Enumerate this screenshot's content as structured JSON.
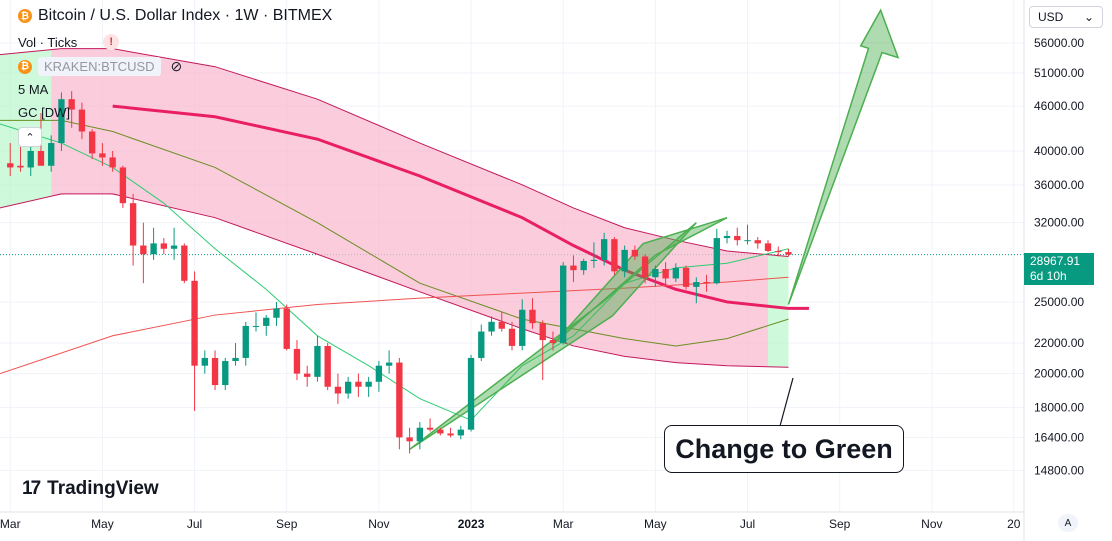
{
  "header": {
    "title": "Bitcoin / U.S. Dollar Index · 1W · BITMEX",
    "vol_label": "Vol · Ticks",
    "compare_symbol": "KRAKEN:BTCUSD",
    "ma_label": "5 MA",
    "gc_label": "GC [DW]",
    "coin_glyph": "₿"
  },
  "toolbar": {
    "currency": "USD",
    "auto_label": "A"
  },
  "branding": {
    "name": "TradingView"
  },
  "annotation": {
    "callout_text": "Change to Green"
  },
  "price_label": {
    "price": "28967.91",
    "countdown": "6d 10h"
  },
  "colors": {
    "up": "#089981",
    "down": "#f23645",
    "band_red": "#f8bbd0",
    "band_green": "#b9f6ca",
    "ma_red": "#e91e63",
    "arrow_green": "#4caf50"
  },
  "chart_data": {
    "type": "candlestick",
    "title": "Bitcoin / U.S. Dollar Index · 1W · BITMEX",
    "y_scale": "log",
    "ylim": [
      13000,
      64000
    ],
    "y_ticks": [
      56000,
      51000,
      46000,
      40000,
      36000,
      32000,
      25000,
      22000,
      20000,
      18000,
      16400,
      14800
    ],
    "x_labels": [
      "Mar",
      "May",
      "Jul",
      "Sep",
      "Nov",
      "2023",
      "Mar",
      "May",
      "Jul",
      "Sep",
      "Nov",
      "20"
    ],
    "x_label_weeks": [
      0,
      9,
      18,
      27,
      36,
      45,
      54,
      63,
      72,
      81,
      90,
      98
    ],
    "x_range_weeks": [
      -1,
      99
    ],
    "current_price": 28967.91,
    "candles": [
      {
        "o": 38500,
        "h": 41000,
        "l": 37000,
        "c": 38000
      },
      {
        "o": 38200,
        "h": 40500,
        "l": 37500,
        "c": 38000
      },
      {
        "o": 38000,
        "h": 41500,
        "l": 37000,
        "c": 40000
      },
      {
        "o": 40000,
        "h": 45000,
        "l": 38500,
        "c": 38200
      },
      {
        "o": 38200,
        "h": 42000,
        "l": 37500,
        "c": 41000
      },
      {
        "o": 41000,
        "h": 48000,
        "l": 40000,
        "c": 47000
      },
      {
        "o": 47000,
        "h": 48200,
        "l": 43000,
        "c": 45500
      },
      {
        "o": 45500,
        "h": 46500,
        "l": 41500,
        "c": 42500
      },
      {
        "o": 42500,
        "h": 42800,
        "l": 39000,
        "c": 39700
      },
      {
        "o": 39700,
        "h": 41000,
        "l": 38200,
        "c": 39200
      },
      {
        "o": 39200,
        "h": 40000,
        "l": 37500,
        "c": 38000
      },
      {
        "o": 38000,
        "h": 38200,
        "l": 33500,
        "c": 34000
      },
      {
        "o": 34000,
        "h": 35000,
        "l": 28000,
        "c": 29800
      },
      {
        "o": 29800,
        "h": 32000,
        "l": 26500,
        "c": 29000
      },
      {
        "o": 29000,
        "h": 31500,
        "l": 28500,
        "c": 30000
      },
      {
        "o": 30000,
        "h": 30500,
        "l": 29000,
        "c": 29500
      },
      {
        "o": 29500,
        "h": 31500,
        "l": 28500,
        "c": 29800
      },
      {
        "o": 29800,
        "h": 30000,
        "l": 26500,
        "c": 26700
      },
      {
        "o": 26700,
        "h": 27500,
        "l": 17800,
        "c": 20500
      },
      {
        "o": 20500,
        "h": 21500,
        "l": 20000,
        "c": 21000
      },
      {
        "o": 21000,
        "h": 21500,
        "l": 19000,
        "c": 19300
      },
      {
        "o": 19300,
        "h": 21000,
        "l": 19000,
        "c": 20800
      },
      {
        "o": 20800,
        "h": 22000,
        "l": 20500,
        "c": 21000
      },
      {
        "o": 21000,
        "h": 23500,
        "l": 20500,
        "c": 23200
      },
      {
        "o": 23200,
        "h": 24200,
        "l": 22800,
        "c": 23200
      },
      {
        "o": 23200,
        "h": 24000,
        "l": 22500,
        "c": 23800
      },
      {
        "o": 23800,
        "h": 25000,
        "l": 23200,
        "c": 24500
      },
      {
        "o": 24500,
        "h": 24800,
        "l": 21500,
        "c": 21600
      },
      {
        "o": 21600,
        "h": 22200,
        "l": 19600,
        "c": 20000
      },
      {
        "o": 20000,
        "h": 20500,
        "l": 19200,
        "c": 19800
      },
      {
        "o": 19800,
        "h": 22500,
        "l": 19500,
        "c": 21800
      },
      {
        "o": 21800,
        "h": 22000,
        "l": 19000,
        "c": 19200
      },
      {
        "o": 19200,
        "h": 20000,
        "l": 18200,
        "c": 18800
      },
      {
        "o": 18800,
        "h": 19800,
        "l": 18500,
        "c": 19500
      },
      {
        "o": 19500,
        "h": 20000,
        "l": 18600,
        "c": 19200
      },
      {
        "o": 19200,
        "h": 19800,
        "l": 18600,
        "c": 19500
      },
      {
        "o": 19500,
        "h": 20800,
        "l": 18900,
        "c": 20500
      },
      {
        "o": 20500,
        "h": 21500,
        "l": 20000,
        "c": 20700
      },
      {
        "o": 20700,
        "h": 21000,
        "l": 15800,
        "c": 16400
      },
      {
        "o": 16400,
        "h": 16900,
        "l": 15600,
        "c": 16200
      },
      {
        "o": 16200,
        "h": 17200,
        "l": 15800,
        "c": 16900
      },
      {
        "o": 16900,
        "h": 17400,
        "l": 16700,
        "c": 16800
      },
      {
        "o": 16800,
        "h": 16900,
        "l": 16500,
        "c": 16600
      },
      {
        "o": 16600,
        "h": 16900,
        "l": 16400,
        "c": 16500
      },
      {
        "o": 16500,
        "h": 17000,
        "l": 16300,
        "c": 16800
      },
      {
        "o": 16800,
        "h": 21200,
        "l": 16700,
        "c": 21000
      },
      {
        "o": 21000,
        "h": 23300,
        "l": 20800,
        "c": 22800
      },
      {
        "o": 22800,
        "h": 23900,
        "l": 22500,
        "c": 23500
      },
      {
        "o": 23500,
        "h": 24200,
        "l": 22800,
        "c": 23000
      },
      {
        "o": 23000,
        "h": 23500,
        "l": 21500,
        "c": 21800
      },
      {
        "o": 21800,
        "h": 25200,
        "l": 21500,
        "c": 24400
      },
      {
        "o": 24400,
        "h": 25300,
        "l": 23000,
        "c": 23400
      },
      {
        "o": 23400,
        "h": 23600,
        "l": 19600,
        "c": 22200
      },
      {
        "o": 22200,
        "h": 22800,
        "l": 21500,
        "c": 22000
      },
      {
        "o": 22000,
        "h": 28300,
        "l": 21900,
        "c": 28000
      },
      {
        "o": 28000,
        "h": 28900,
        "l": 26600,
        "c": 27600
      },
      {
        "o": 27600,
        "h": 28600,
        "l": 27200,
        "c": 28400
      },
      {
        "o": 28400,
        "h": 30100,
        "l": 27800,
        "c": 28500
      },
      {
        "o": 28500,
        "h": 31000,
        "l": 28000,
        "c": 30400
      },
      {
        "o": 30400,
        "h": 30600,
        "l": 27200,
        "c": 27500
      },
      {
        "o": 27500,
        "h": 29800,
        "l": 27000,
        "c": 29400
      },
      {
        "o": 29400,
        "h": 29800,
        "l": 28500,
        "c": 28800
      },
      {
        "o": 28800,
        "h": 29000,
        "l": 26500,
        "c": 27000
      },
      {
        "o": 27000,
        "h": 28000,
        "l": 26200,
        "c": 27700
      },
      {
        "o": 27700,
        "h": 28300,
        "l": 26300,
        "c": 26900
      },
      {
        "o": 26900,
        "h": 28200,
        "l": 26600,
        "c": 27800
      },
      {
        "o": 27800,
        "h": 28000,
        "l": 26000,
        "c": 26200
      },
      {
        "o": 26200,
        "h": 27000,
        "l": 24900,
        "c": 26600
      },
      {
        "o": 26600,
        "h": 27200,
        "l": 25800,
        "c": 26500
      },
      {
        "o": 26500,
        "h": 31400,
        "l": 26400,
        "c": 30500
      },
      {
        "o": 30500,
        "h": 31200,
        "l": 30000,
        "c": 30700
      },
      {
        "o": 30700,
        "h": 31500,
        "l": 29800,
        "c": 30300
      },
      {
        "o": 30300,
        "h": 31800,
        "l": 29900,
        "c": 30300
      },
      {
        "o": 30300,
        "h": 30600,
        "l": 29500,
        "c": 30000
      },
      {
        "o": 30000,
        "h": 30300,
        "l": 29200,
        "c": 29300
      },
      {
        "o": 29300,
        "h": 29700,
        "l": 28800,
        "c": 29200
      },
      {
        "o": 29200,
        "h": 29500,
        "l": 28800,
        "c": 28968
      }
    ],
    "series": [
      {
        "name": "5 MA",
        "color": "#2ecc71",
        "points": [
          [
            -1,
            43500
          ],
          [
            5,
            41000
          ],
          [
            10,
            38000
          ],
          [
            15,
            34000
          ],
          [
            20,
            29500
          ],
          [
            25,
            26000
          ],
          [
            30,
            22500
          ],
          [
            35,
            20500
          ],
          [
            40,
            18500
          ],
          [
            45,
            17300
          ],
          [
            50,
            20500
          ],
          [
            55,
            22500
          ],
          [
            60,
            26500
          ],
          [
            65,
            27800
          ],
          [
            70,
            28200
          ],
          [
            76,
            29500
          ]
        ]
      },
      {
        "type": "ma",
        "name": "",
        "color": "#e91e63",
        "points": [
          [
            10,
            46000
          ],
          [
            20,
            44500
          ],
          [
            30,
            41500
          ],
          [
            40,
            37000
          ],
          [
            50,
            32500
          ],
          [
            55,
            29800
          ],
          [
            60,
            27600
          ],
          [
            65,
            26000
          ],
          [
            70,
            25000
          ],
          [
            76,
            24500
          ],
          [
            78,
            24500
          ]
        ]
      },
      {
        "name": "",
        "color": "#6b8e23",
        "points": [
          [
            -1,
            44000
          ],
          [
            5,
            44000
          ],
          [
            10,
            42500
          ],
          [
            20,
            38000
          ],
          [
            30,
            32000
          ],
          [
            40,
            26500
          ],
          [
            50,
            23700
          ],
          [
            60,
            22300
          ],
          [
            65,
            21800
          ],
          [
            70,
            22300
          ],
          [
            76,
            23700
          ]
        ]
      },
      {
        "name": "",
        "color": "#ef5350",
        "points": [
          [
            -1,
            20000
          ],
          [
            10,
            22500
          ],
          [
            20,
            24000
          ],
          [
            30,
            24800
          ],
          [
            40,
            25300
          ],
          [
            50,
            25700
          ],
          [
            60,
            26100
          ],
          [
            70,
            26600
          ],
          [
            76,
            27000
          ]
        ]
      }
    ],
    "band": {
      "upper": [
        [
          -1,
          54000
        ],
        [
          5,
          55000
        ],
        [
          10,
          55000
        ],
        [
          20,
          52000
        ],
        [
          30,
          47000
        ],
        [
          40,
          41000
        ],
        [
          50,
          36000
        ],
        [
          55,
          33500
        ],
        [
          60,
          31500
        ],
        [
          65,
          30300
        ],
        [
          70,
          29300
        ],
        [
          76,
          28800
        ]
      ],
      "lower": [
        [
          -1,
          33500
        ],
        [
          5,
          35000
        ],
        [
          10,
          35000
        ],
        [
          20,
          32500
        ],
        [
          30,
          29000
        ],
        [
          40,
          25800
        ],
        [
          50,
          23000
        ],
        [
          55,
          21800
        ],
        [
          60,
          21100
        ],
        [
          65,
          20700
        ],
        [
          70,
          20500
        ],
        [
          76,
          20400
        ]
      ],
      "green_until": 4,
      "green_from": 74
    },
    "arrows": [
      {
        "from": [
          39,
          15800
        ],
        "to": [
          58,
          24800
        ],
        "tip": [
          67,
          32000
        ],
        "color": "#4caf50"
      },
      {
        "from": [
          76,
          24800
        ],
        "to": [
          85,
          62000
        ],
        "color": "#4caf50"
      },
      {
        "from": [
          53,
          21900
        ],
        "to": [
          62,
          29800
        ],
        "tip": [
          70,
          32500
        ],
        "color": "#4caf50"
      }
    ]
  }
}
